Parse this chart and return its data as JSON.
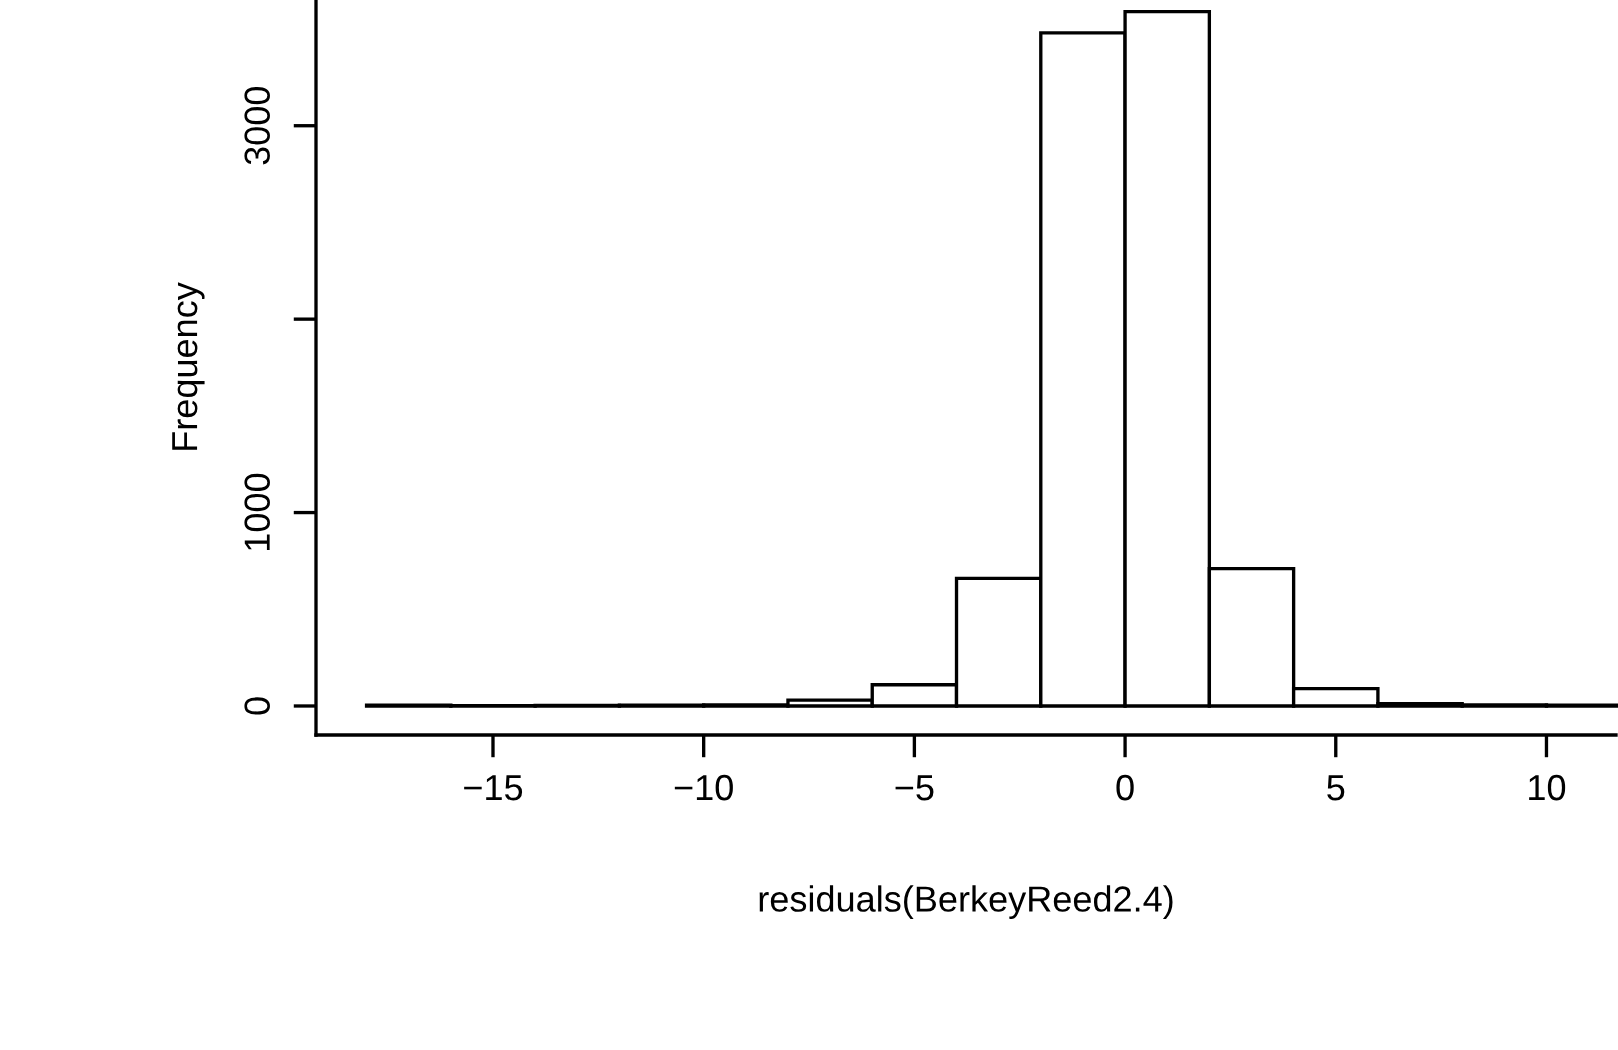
{
  "chart_data": {
    "type": "histogram",
    "xlabel": "residuals(BerkeyReed2.4)",
    "ylabel": "Frequency",
    "bins": [
      -18,
      -16,
      -14,
      -12,
      -10,
      -8,
      -6,
      -4,
      -2,
      0,
      2,
      4,
      6,
      8,
      10,
      12
    ],
    "values": [
      4,
      2,
      3,
      4,
      6,
      30,
      110,
      660,
      3480,
      3590,
      710,
      90,
      12,
      5,
      4
    ],
    "color": "#ffffff",
    "xlim": [
      -19.2,
      11.65
    ],
    "ylim": [
      -150,
      3650
    ],
    "xticks": [
      -15,
      -10,
      -5,
      0,
      5,
      10
    ],
    "yticks": [
      0,
      1000,
      {
        "value": 2000,
        "label": null
      },
      3000
    ],
    "grid": false
  }
}
